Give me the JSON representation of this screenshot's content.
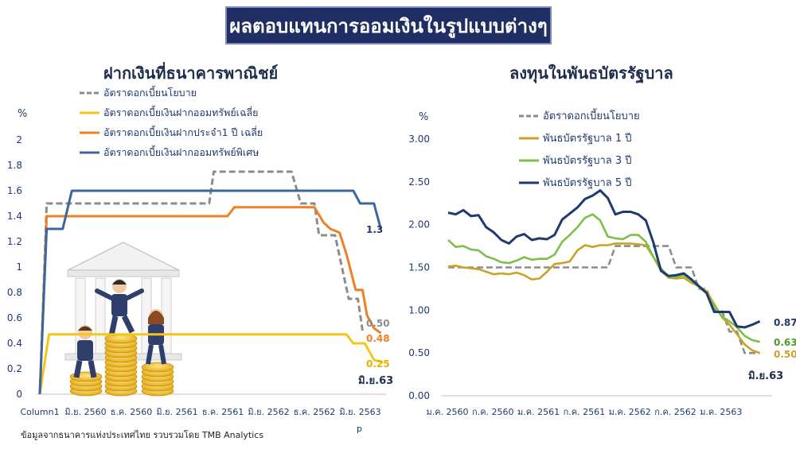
{
  "banner": "ผลตอบแทนการออมเงินในรูปแบบต่างๆ",
  "source": "ข้อมูลจากธนาคารแห่งประเทศไทย  รวบรวมโดย TMB Analytics",
  "colors": {
    "banner_bg": "#1f2f63",
    "policy": "#8c8c8c",
    "savings_avg": "#f5c518",
    "fixed_1y": "#f07f25",
    "special_savings": "#3b66a0",
    "bond1": "#c9a227",
    "bond3": "#7cc04b",
    "bond5": "#1f3a6e"
  },
  "icons": [
    "bank-building-icon",
    "business-people-icon",
    "coin-stack-icon"
  ],
  "chart_data": [
    {
      "type": "line",
      "title": "ฝากเงินที่ธนาคารพาณิชย์",
      "ylabel": "%",
      "ylim": [
        0,
        2
      ],
      "yticks": [
        "0",
        "0.2",
        "0.4",
        "0.6",
        "0.8",
        "1",
        "1.2",
        "1.4",
        "1.6",
        "1.8",
        "2"
      ],
      "x_labels": [
        "Column1",
        "มิ.ย. 2560",
        "ธ.ค. 2560",
        "มิ.ย. 2561",
        "ธ.ค. 2561",
        "มิ.ย. 2562",
        "ธ.ค. 2562",
        "มิ.ย. 2563"
      ],
      "x_extra_label": "p",
      "x_last_note": "มิ.ย.63",
      "legend": [
        "อัตราดอกเบี้ยนโยบาย",
        "อัตราดอกเบี้ยเงินฝากออมทรัพย์เฉลี่ย",
        "อัตราดอกเบี้ยเงินฝากประจำ1 ปี เฉลี่ย",
        "อัตราดอกเบี้ยเงินฝากออมทรัพย์พิเศษ"
      ],
      "series": [
        {
          "name": "อัตราดอกเบี้ยนโยบาย",
          "style": "dashed",
          "color": "#8c8c8c",
          "points": [
            [
              0,
              0
            ],
            [
              0.15,
              1.5
            ],
            [
              3.2,
              1.5
            ],
            [
              3.7,
              1.5
            ],
            [
              3.8,
              1.75
            ],
            [
              5.5,
              1.75
            ],
            [
              5.7,
              1.5
            ],
            [
              6.0,
              1.5
            ],
            [
              6.1,
              1.25
            ],
            [
              6.45,
              1.25
            ],
            [
              6.6,
              1.0
            ],
            [
              6.75,
              0.75
            ],
            [
              6.95,
              0.75
            ],
            [
              7.05,
              0.5
            ]
          ]
        },
        {
          "name": "อัตราดอกเบี้ยเงินฝากออมทรัพย์เฉลี่ย",
          "style": "solid",
          "color": "#f5c518",
          "points": [
            [
              0,
              0
            ],
            [
              0.2,
              0.47
            ],
            [
              6.7,
              0.47
            ],
            [
              6.85,
              0.4
            ],
            [
              7.1,
              0.4
            ],
            [
              7.3,
              0.27
            ],
            [
              7.5,
              0.25
            ]
          ]
        },
        {
          "name": "อัตราดอกเบี้ยเงินฝากประจำ1 ปี เฉลี่ย",
          "style": "solid",
          "color": "#f07f25",
          "points": [
            [
              0,
              0
            ],
            [
              0.15,
              1.4
            ],
            [
              4.1,
              1.4
            ],
            [
              4.25,
              1.47
            ],
            [
              6.0,
              1.47
            ],
            [
              6.2,
              1.35
            ],
            [
              6.35,
              1.3
            ],
            [
              6.55,
              1.27
            ],
            [
              6.7,
              1.1
            ],
            [
              6.9,
              0.82
            ],
            [
              7.05,
              0.82
            ],
            [
              7.15,
              0.62
            ],
            [
              7.3,
              0.52
            ],
            [
              7.45,
              0.48
            ]
          ]
        },
        {
          "name": "อัตราดอกเบี้ยเงินฝากออมทรัพย์พิเศษ",
          "style": "solid",
          "color": "#3b66a0",
          "points": [
            [
              0,
              0
            ],
            [
              0.15,
              1.3
            ],
            [
              0.5,
              1.3
            ],
            [
              0.7,
              1.6
            ],
            [
              6.85,
              1.6
            ],
            [
              7.0,
              1.5
            ],
            [
              7.3,
              1.5
            ],
            [
              7.45,
              1.3
            ]
          ]
        }
      ],
      "end_labels": [
        {
          "text": "1.3",
          "color": "#1f3a6e"
        },
        {
          "text": "0.50",
          "color": "#8c8c8c"
        },
        {
          "text": "0.48",
          "color": "#f07f25"
        },
        {
          "text": "0.25",
          "color": "#e0b400"
        }
      ]
    },
    {
      "type": "line",
      "title": "ลงทุนในพันธบัตรรัฐบาล",
      "ylabel": "%",
      "ylim": [
        0,
        3
      ],
      "yticks": [
        "0.00",
        "0.50",
        "1.00",
        "1.50",
        "2.00",
        "2.50",
        "3.00"
      ],
      "x_labels": [
        "ม.ค. 2560",
        "ก.ค. 2560",
        "ม.ค. 2561",
        "ก.ค. 2561",
        "ม.ค. 2562",
        "ก.ค. 2562",
        "ม.ค. 2563"
      ],
      "x_last_note": "มิ.ย.63",
      "legend": [
        "อัตราดอกเบี้ยนโยบาย",
        "พันธบัตรรัฐบาล 1 ปี",
        "พันธบัตรรัฐบาล 3 ปี",
        "พันธบัตรรัฐบาล 5 ปี"
      ],
      "x_months": [
        0,
        1,
        2,
        3,
        4,
        5,
        6,
        7,
        8,
        9,
        10,
        11,
        12,
        13,
        14,
        15,
        16,
        17,
        18,
        19,
        20,
        21,
        22,
        23,
        24,
        25,
        26,
        27,
        28,
        29,
        30,
        31,
        32,
        33,
        34,
        35,
        36,
        37,
        38,
        39,
        40,
        41
      ],
      "series": [
        {
          "name": "อัตราดอกเบี้ยนโยบาย",
          "style": "dashed",
          "color": "#8c8c8c",
          "values": [
            1.5,
            1.5,
            1.5,
            1.5,
            1.5,
            1.5,
            1.5,
            1.5,
            1.5,
            1.5,
            1.5,
            1.5,
            1.5,
            1.5,
            1.5,
            1.5,
            1.5,
            1.5,
            1.5,
            1.5,
            1.5,
            1.5,
            1.75,
            1.75,
            1.75,
            1.75,
            1.75,
            1.75,
            1.75,
            1.75,
            1.5,
            1.5,
            1.5,
            1.25,
            1.25,
            1.0,
            1.0,
            0.75,
            0.75,
            0.5,
            0.5,
            0.5
          ]
        },
        {
          "name": "พันธบัตรรัฐบาล 1 ปี",
          "style": "solid",
          "color": "#c9a227",
          "values": [
            1.51,
            1.52,
            1.5,
            1.49,
            1.48,
            1.45,
            1.42,
            1.43,
            1.42,
            1.44,
            1.41,
            1.36,
            1.37,
            1.45,
            1.54,
            1.55,
            1.57,
            1.7,
            1.76,
            1.74,
            1.76,
            1.76,
            1.78,
            1.78,
            1.78,
            1.77,
            1.76,
            1.62,
            1.46,
            1.38,
            1.37,
            1.38,
            1.32,
            1.28,
            1.22,
            1.07,
            0.92,
            0.83,
            0.72,
            0.6,
            0.53,
            0.5
          ]
        },
        {
          "name": "พันธบัตรรัฐบาล 3 ปี",
          "style": "solid",
          "color": "#7cc04b",
          "values": [
            1.82,
            1.74,
            1.75,
            1.71,
            1.7,
            1.63,
            1.6,
            1.56,
            1.55,
            1.58,
            1.62,
            1.59,
            1.6,
            1.6,
            1.65,
            1.8,
            1.88,
            1.97,
            2.08,
            2.12,
            2.05,
            1.86,
            1.84,
            1.83,
            1.88,
            1.88,
            1.8,
            1.62,
            1.49,
            1.39,
            1.39,
            1.41,
            1.35,
            1.27,
            1.2,
            1.05,
            0.93,
            0.87,
            0.8,
            0.7,
            0.65,
            0.63
          ]
        },
        {
          "name": "พันธบัตรรัฐบาล 5 ปี",
          "style": "solid",
          "color": "#1f3a6e",
          "values": [
            2.14,
            2.12,
            2.17,
            2.1,
            2.11,
            1.97,
            1.91,
            1.82,
            1.78,
            1.86,
            1.89,
            1.82,
            1.84,
            1.83,
            1.88,
            2.06,
            2.13,
            2.2,
            2.3,
            2.34,
            2.4,
            2.31,
            2.12,
            2.15,
            2.15,
            2.12,
            2.05,
            1.79,
            1.46,
            1.4,
            1.41,
            1.43,
            1.36,
            1.28,
            1.2,
            0.98,
            0.98,
            0.98,
            0.81,
            0.8,
            0.83,
            0.87
          ]
        }
      ],
      "end_labels": [
        {
          "text": "0.87",
          "color": "#1f3a6e"
        },
        {
          "text": "0.63",
          "color": "#4f9a26"
        },
        {
          "text": "0.50",
          "color": "#c9a227"
        }
      ]
    }
  ]
}
